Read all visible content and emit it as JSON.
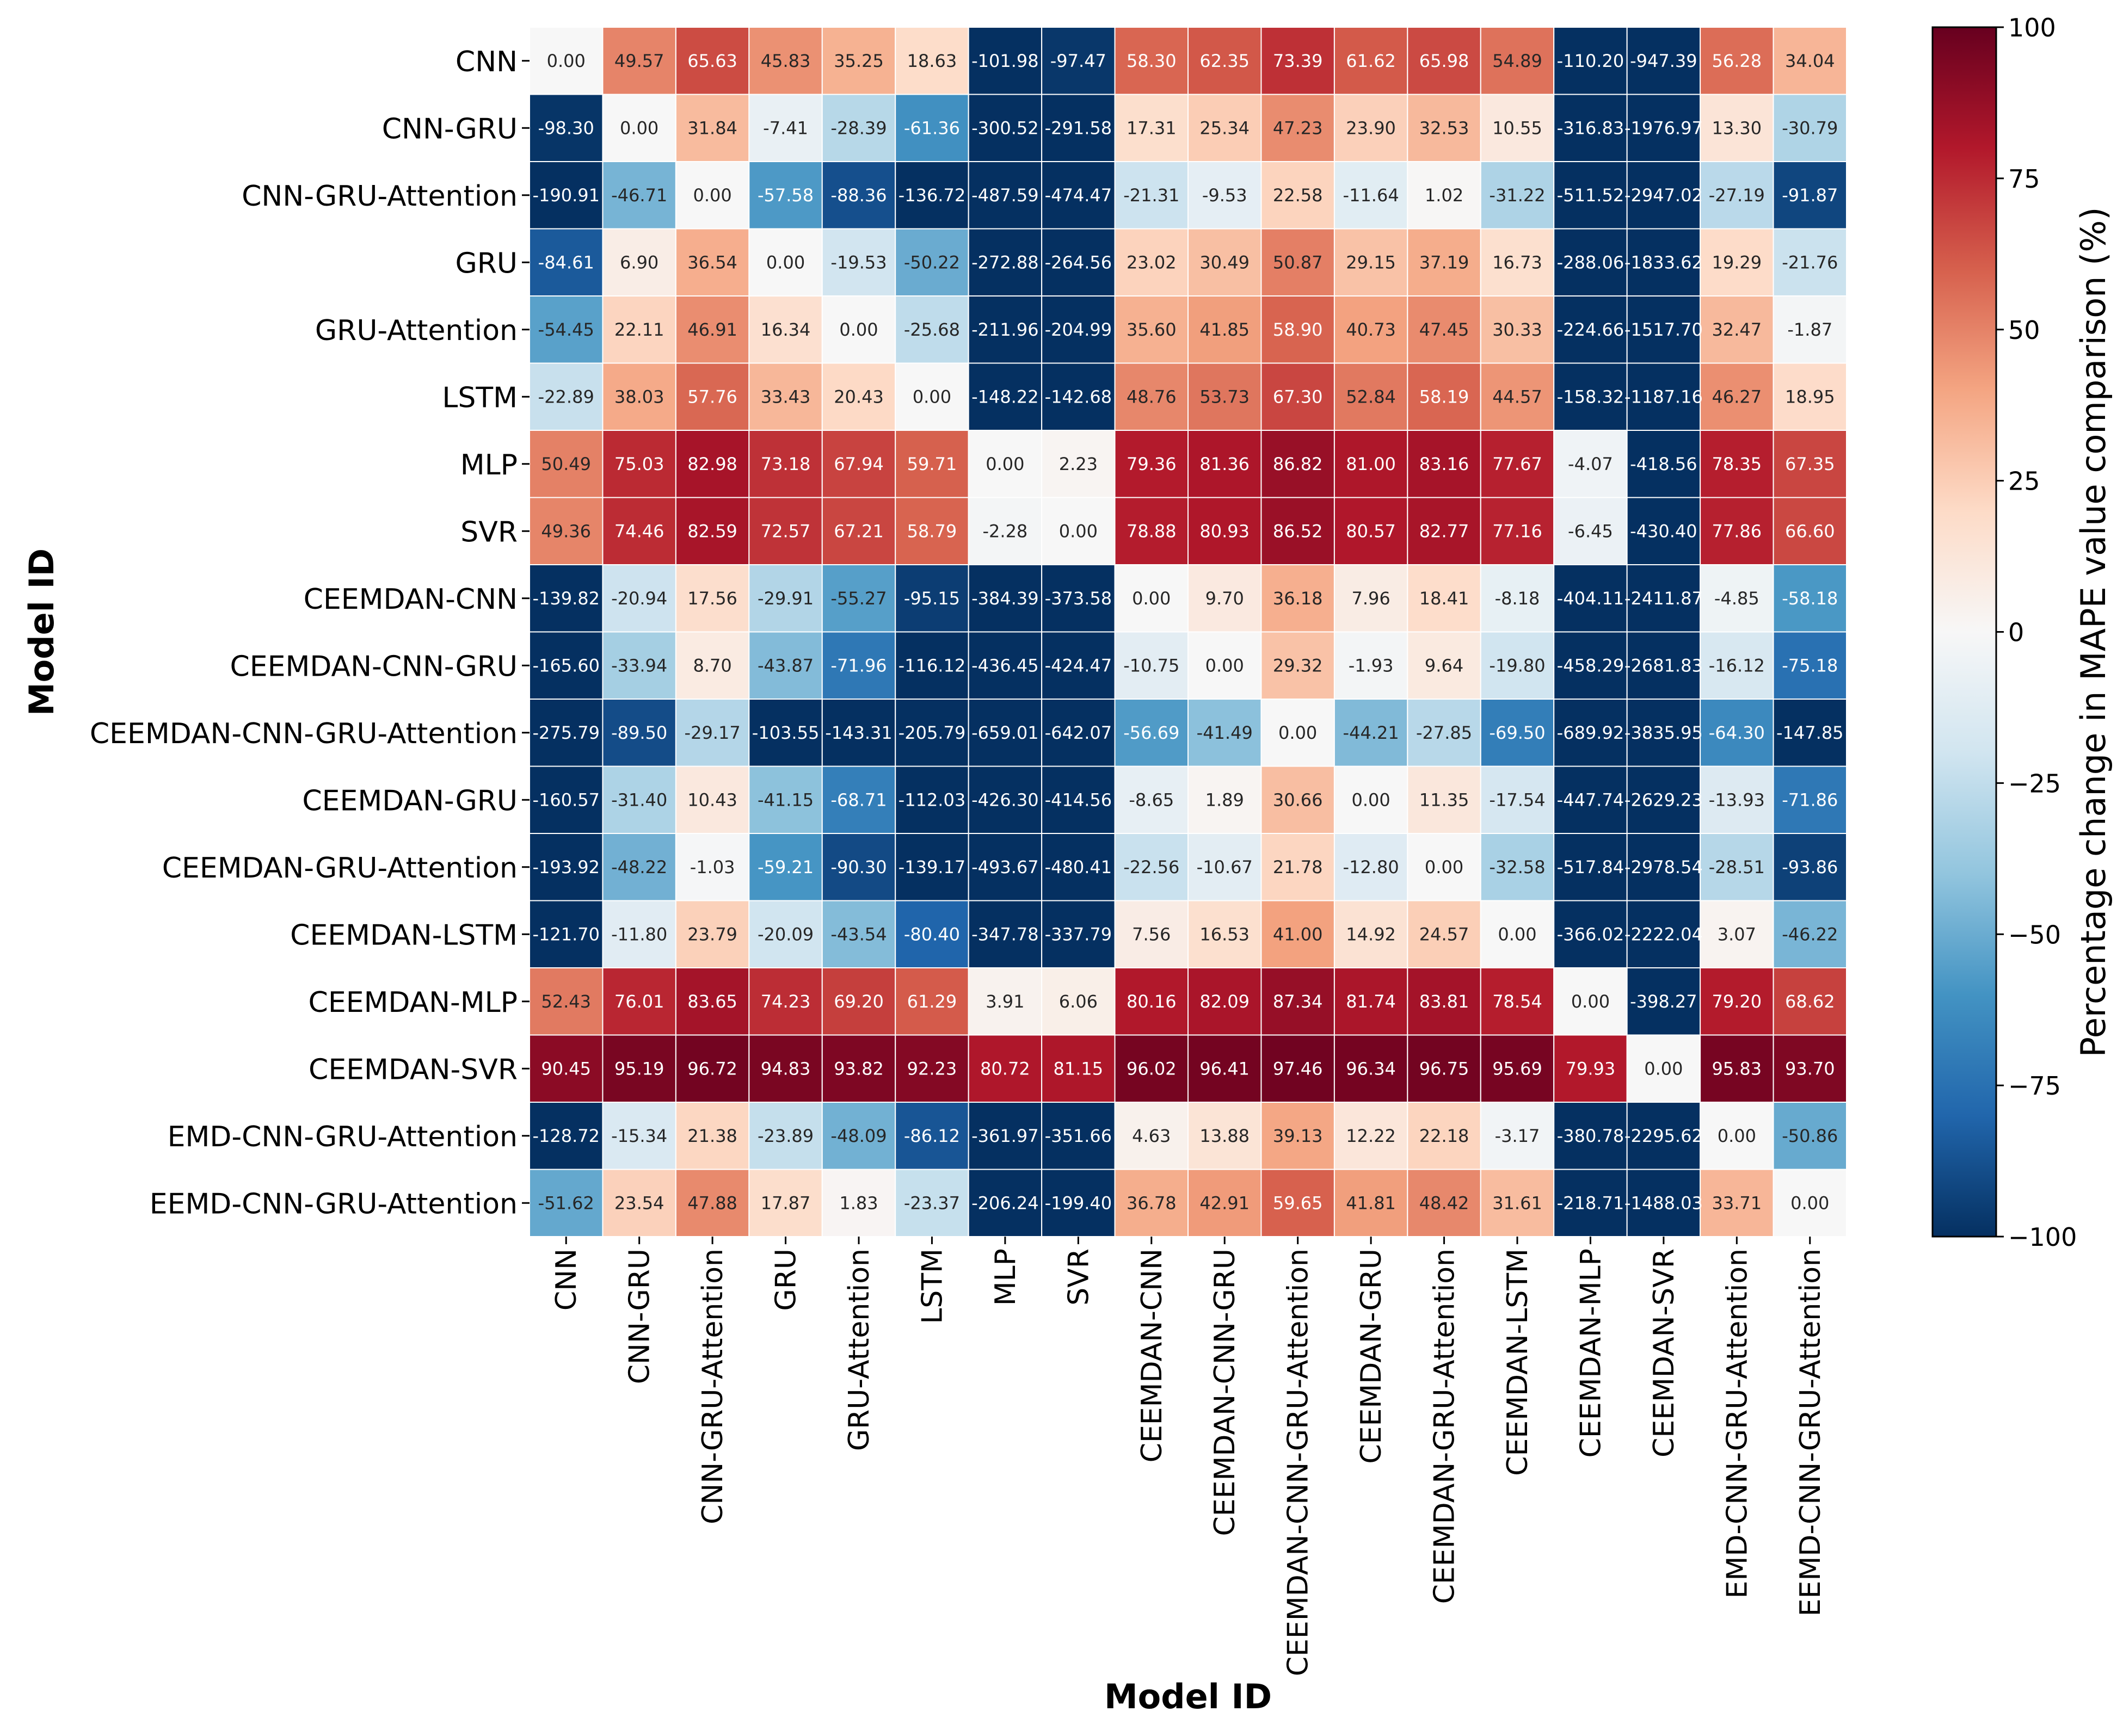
{
  "chart_data": {
    "type": "heatmap",
    "title": "",
    "xlabel": "Model ID",
    "ylabel": "Model ID",
    "colorbar_label": "Percentage change in MAPE value comparison (%)",
    "colorbar_range": [
      -100,
      100
    ],
    "colorbar_ticks": [
      "100",
      "75",
      "50",
      "25",
      "0",
      "−25",
      "−50",
      "−75",
      "−100"
    ],
    "colormap": "RdBu_r",
    "colors": {
      "low": "#053061",
      "mid": "#f7f7f7",
      "high": "#67001f"
    },
    "row_labels": [
      "CNN",
      "CNN-GRU",
      "CNN-GRU-Attention",
      "GRU",
      "GRU-Attention",
      "LSTM",
      "MLP",
      "SVR",
      "CEEMDAN-CNN",
      "CEEMDAN-CNN-GRU",
      "CEEMDAN-CNN-GRU-Attention",
      "CEEMDAN-GRU",
      "CEEMDAN-GRU-Attention",
      "CEEMDAN-LSTM",
      "CEEMDAN-MLP",
      "CEEMDAN-SVR",
      "EMD-CNN-GRU-Attention",
      "EEMD-CNN-GRU-Attention"
    ],
    "col_labels": [
      "CNN",
      "CNN-GRU",
      "CNN-GRU-Attention",
      "GRU",
      "GRU-Attention",
      "LSTM",
      "MLP",
      "SVR",
      "CEEMDAN-CNN",
      "CEEMDAN-CNN-GRU",
      "CEEMDAN-CNN-GRU-Attention",
      "CEEMDAN-GRU",
      "CEEMDAN-GRU-Attention",
      "CEEMDAN-LSTM",
      "CEEMDAN-MLP",
      "CEEMDAN-SVR",
      "EMD-CNN-GRU-Attention",
      "EEMD-CNN-GRU-Attention"
    ],
    "values": [
      [
        "0.00",
        "49.57",
        "65.63",
        "45.83",
        "35.25",
        "18.63",
        "-101.98",
        "-97.47",
        "58.30",
        "62.35",
        "73.39",
        "61.62",
        "65.98",
        "54.89",
        "-110.20",
        "-947.39",
        "56.28",
        "34.04"
      ],
      [
        "-98.30",
        "0.00",
        "31.84",
        "-7.41",
        "-28.39",
        "-61.36",
        "-300.52",
        "-291.58",
        "17.31",
        "25.34",
        "47.23",
        "23.90",
        "32.53",
        "10.55",
        "-316.83",
        "-1976.97",
        "13.30",
        "-30.79"
      ],
      [
        "-190.91",
        "-46.71",
        "0.00",
        "-57.58",
        "-88.36",
        "-136.72",
        "-487.59",
        "-474.47",
        "-21.31",
        "-9.53",
        "22.58",
        "-11.64",
        "1.02",
        "-31.22",
        "-511.52",
        "-2947.02",
        "-27.19",
        "-91.87"
      ],
      [
        "-84.61",
        "6.90",
        "36.54",
        "0.00",
        "-19.53",
        "-50.22",
        "-272.88",
        "-264.56",
        "23.02",
        "30.49",
        "50.87",
        "29.15",
        "37.19",
        "16.73",
        "-288.06",
        "-1833.62",
        "19.29",
        "-21.76"
      ],
      [
        "-54.45",
        "22.11",
        "46.91",
        "16.34",
        "0.00",
        "-25.68",
        "-211.96",
        "-204.99",
        "35.60",
        "41.85",
        "58.90",
        "40.73",
        "47.45",
        "30.33",
        "-224.66",
        "-1517.70",
        "32.47",
        "-1.87"
      ],
      [
        "-22.89",
        "38.03",
        "57.76",
        "33.43",
        "20.43",
        "0.00",
        "-148.22",
        "-142.68",
        "48.76",
        "53.73",
        "67.30",
        "52.84",
        "58.19",
        "44.57",
        "-158.32",
        "-1187.16",
        "46.27",
        "18.95"
      ],
      [
        "50.49",
        "75.03",
        "82.98",
        "73.18",
        "67.94",
        "59.71",
        "0.00",
        "2.23",
        "79.36",
        "81.36",
        "86.82",
        "81.00",
        "83.16",
        "77.67",
        "-4.07",
        "-418.56",
        "78.35",
        "67.35"
      ],
      [
        "49.36",
        "74.46",
        "82.59",
        "72.57",
        "67.21",
        "58.79",
        "-2.28",
        "0.00",
        "78.88",
        "80.93",
        "86.52",
        "80.57",
        "82.77",
        "77.16",
        "-6.45",
        "-430.40",
        "77.86",
        "66.60"
      ],
      [
        "-139.82",
        "-20.94",
        "17.56",
        "-29.91",
        "-55.27",
        "-95.15",
        "-384.39",
        "-373.58",
        "0.00",
        "9.70",
        "36.18",
        "7.96",
        "18.41",
        "-8.18",
        "-404.11",
        "-2411.87",
        "-4.85",
        "-58.18"
      ],
      [
        "-165.60",
        "-33.94",
        "8.70",
        "-43.87",
        "-71.96",
        "-116.12",
        "-436.45",
        "-424.47",
        "-10.75",
        "0.00",
        "29.32",
        "-1.93",
        "9.64",
        "-19.80",
        "-458.29",
        "-2681.83",
        "-16.12",
        "-75.18"
      ],
      [
        "-275.79",
        "-89.50",
        "-29.17",
        "-103.55",
        "-143.31",
        "-205.79",
        "-659.01",
        "-642.07",
        "-56.69",
        "-41.49",
        "0.00",
        "-44.21",
        "-27.85",
        "-69.50",
        "-689.92",
        "-3835.95",
        "-64.30",
        "-147.85"
      ],
      [
        "-160.57",
        "-31.40",
        "10.43",
        "-41.15",
        "-68.71",
        "-112.03",
        "-426.30",
        "-414.56",
        "-8.65",
        "1.89",
        "30.66",
        "0.00",
        "11.35",
        "-17.54",
        "-447.74",
        "-2629.23",
        "-13.93",
        "-71.86"
      ],
      [
        "-193.92",
        "-48.22",
        "-1.03",
        "-59.21",
        "-90.30",
        "-139.17",
        "-493.67",
        "-480.41",
        "-22.56",
        "-10.67",
        "21.78",
        "-12.80",
        "0.00",
        "-32.58",
        "-517.84",
        "-2978.54",
        "-28.51",
        "-93.86"
      ],
      [
        "-121.70",
        "-11.80",
        "23.79",
        "-20.09",
        "-43.54",
        "-80.40",
        "-347.78",
        "-337.79",
        "7.56",
        "16.53",
        "41.00",
        "14.92",
        "24.57",
        "0.00",
        "-366.02",
        "-2222.04",
        "3.07",
        "-46.22"
      ],
      [
        "52.43",
        "76.01",
        "83.65",
        "74.23",
        "69.20",
        "61.29",
        "3.91",
        "6.06",
        "80.16",
        "82.09",
        "87.34",
        "81.74",
        "83.81",
        "78.54",
        "0.00",
        "-398.27",
        "79.20",
        "68.62"
      ],
      [
        "90.45",
        "95.19",
        "96.72",
        "94.83",
        "93.82",
        "92.23",
        "80.72",
        "81.15",
        "96.02",
        "96.41",
        "97.46",
        "96.34",
        "96.75",
        "95.69",
        "79.93",
        "0.00",
        "95.83",
        "93.70"
      ],
      [
        "-128.72",
        "-15.34",
        "21.38",
        "-23.89",
        "-48.09",
        "-86.12",
        "-361.97",
        "-351.66",
        "4.63",
        "13.88",
        "39.13",
        "12.22",
        "22.18",
        "-3.17",
        "-380.78",
        "-2295.62",
        "0.00",
        "-50.86"
      ],
      [
        "-51.62",
        "23.54",
        "47.88",
        "17.87",
        "1.83",
        "-23.37",
        "-206.24",
        "-199.40",
        "36.78",
        "42.91",
        "59.65",
        "41.81",
        "48.42",
        "31.61",
        "-218.71",
        "-1488.03",
        "33.71",
        "0.00"
      ]
    ]
  }
}
